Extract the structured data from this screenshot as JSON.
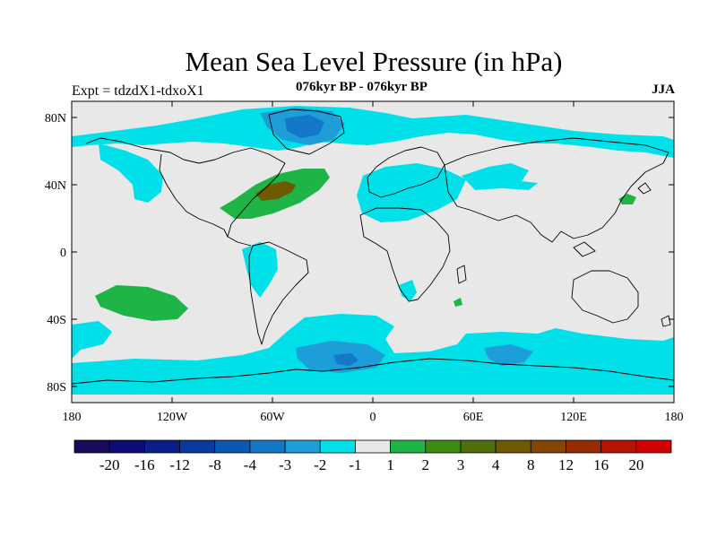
{
  "title": "Mean Sea Level Pressure (in hPa)",
  "subtitle_left": "Expt = tdzdX1-tdxoX1",
  "subtitle_center": "076kyr BP - 076kyr BP",
  "subtitle_right": "JJA",
  "lat_labels": [
    "80N",
    "40N",
    "0",
    "40S",
    "80S"
  ],
  "lon_labels": [
    "180",
    "120W",
    "60W",
    "0",
    "60E",
    "120E",
    "180"
  ],
  "colorbar": {
    "colors": [
      "#1a0a5a",
      "#0c0c78",
      "#0a1e8c",
      "#0a3aa0",
      "#0a58b4",
      "#1478c8",
      "#1e9ed8",
      "#00e0e8",
      "#e8e8e8",
      "#1eb446",
      "#3c8c14",
      "#506e0a",
      "#6e5a00",
      "#824600",
      "#962c00",
      "#b41400",
      "#d20000"
    ],
    "labels": [
      "-20",
      "-16",
      "-12",
      "-8",
      "-4",
      "-3",
      "-2",
      "-1",
      "1",
      "2",
      "3",
      "4",
      "8",
      "12",
      "16",
      "20"
    ]
  },
  "palette": {
    "background": "#e8e8e8",
    "cyan": "#00e0e8",
    "mid_blue": "#1e9ed8",
    "blue": "#1478c8",
    "green": "#1eb446",
    "olive": "#6e5a00"
  }
}
